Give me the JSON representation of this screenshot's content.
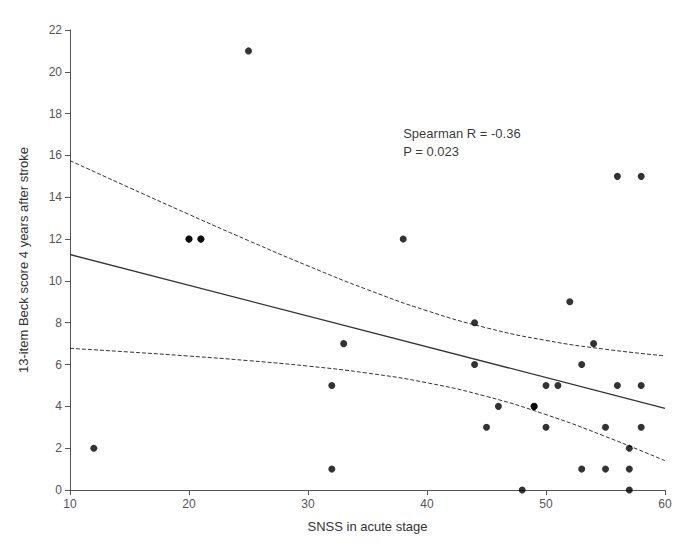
{
  "chart_data": {
    "type": "scatter",
    "xlabel": "SNSS in acute stage",
    "ylabel": "13-item Beck score 4 years after stroke",
    "annotations": [
      {
        "text": "Spearman R = -0.36\nP = 0.023",
        "x": 38,
        "y": 17.5
      }
    ],
    "xlim": [
      10,
      60
    ],
    "ylim": [
      0,
      22
    ],
    "xticks": [
      10,
      20,
      30,
      40,
      50,
      60
    ],
    "yticks": [
      0,
      2,
      4,
      6,
      8,
      10,
      12,
      14,
      16,
      18,
      20,
      22
    ],
    "grid": false,
    "series": [
      {
        "type": "scatter",
        "color": "#000000",
        "marker": "circle",
        "x": [
          12,
          20,
          20,
          21,
          21,
          25,
          32,
          32,
          33,
          38,
          44,
          44,
          45,
          46,
          48,
          49,
          49,
          50,
          50,
          51,
          52,
          53,
          53,
          54,
          55,
          55,
          56,
          56,
          57,
          57,
          57,
          58,
          58,
          58
        ],
        "values": [
          2,
          12,
          12,
          12,
          12,
          21,
          1,
          5,
          7,
          12,
          8,
          6,
          3,
          4,
          0,
          4,
          4,
          5,
          3,
          5,
          9,
          6,
          1,
          7,
          1,
          3,
          15,
          5,
          1,
          2,
          0,
          15,
          3,
          5
        ]
      },
      {
        "type": "line",
        "color": "#333333",
        "line_style": "solid",
        "x": [
          10,
          60
        ],
        "values": [
          11.263,
          3.909
        ]
      },
      {
        "type": "line",
        "color": "#333333",
        "line_style": "dashed",
        "x": [
          10,
          15,
          20,
          25,
          30,
          35,
          40,
          45,
          50,
          55,
          60
        ],
        "values": [
          15.752,
          14.457,
          13.179,
          11.927,
          10.717,
          9.582,
          8.573,
          7.755,
          7.155,
          6.73,
          6.416
        ]
      },
      {
        "type": "line",
        "color": "#333333",
        "line_style": "dashed",
        "x": [
          10,
          15,
          20,
          25,
          30,
          35,
          40,
          45,
          50,
          55,
          60
        ],
        "values": [
          6.775,
          6.599,
          6.406,
          6.187,
          5.926,
          5.59,
          5.128,
          4.475,
          3.605,
          2.558,
          1.401
        ]
      }
    ]
  }
}
